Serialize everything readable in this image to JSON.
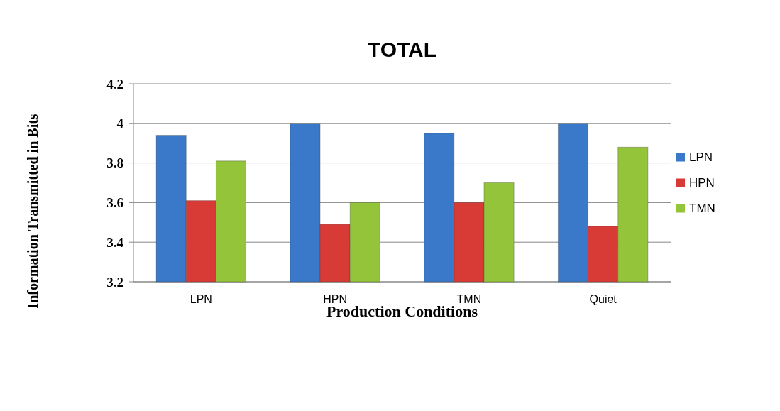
{
  "chart_data": {
    "type": "bar",
    "title": "TOTAL",
    "xlabel": "Production Conditions",
    "ylabel": "Information Transmitted in Bits",
    "categories": [
      "LPN",
      "HPN",
      "TMN",
      "Quiet"
    ],
    "series": [
      {
        "name": "LPN",
        "color": "#3a78c9",
        "values": [
          3.94,
          4.0,
          3.95,
          4.0
        ]
      },
      {
        "name": "HPN",
        "color": "#d83b36",
        "values": [
          3.61,
          3.49,
          3.6,
          3.48
        ]
      },
      {
        "name": "TMN",
        "color": "#93c43a",
        "values": [
          3.81,
          3.6,
          3.7,
          3.88
        ]
      }
    ],
    "ylim": [
      3.2,
      4.2
    ],
    "yticks": [
      3.2,
      3.4,
      3.6,
      3.8,
      4,
      4.2
    ],
    "grid": "y",
    "legend": "right"
  }
}
